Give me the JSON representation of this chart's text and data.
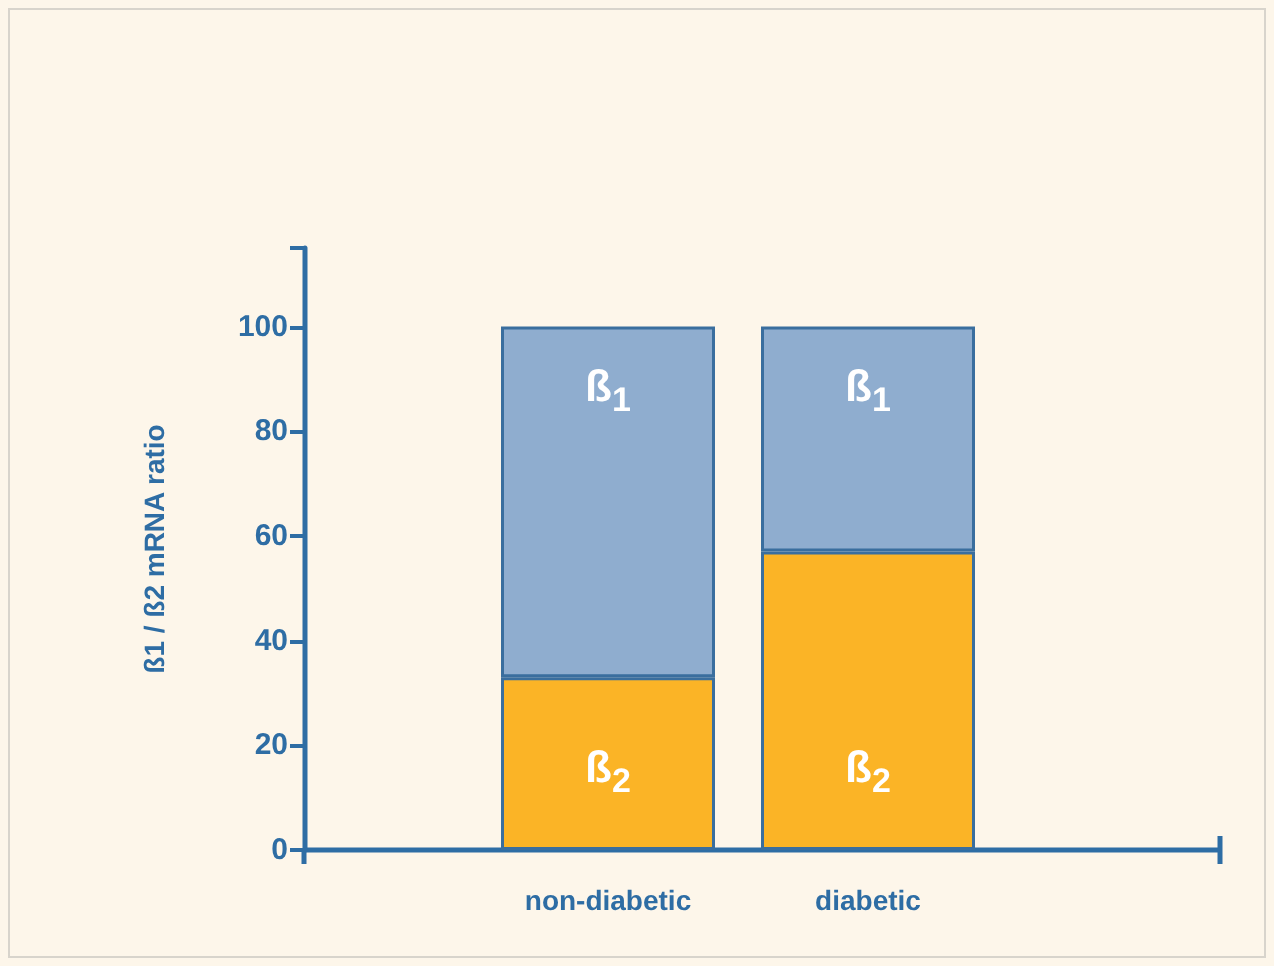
{
  "chart_data": {
    "type": "bar",
    "stacked": true,
    "ylabel": "ß1 / ß2 mRNA ratio",
    "categories": [
      "non-diabetic",
      "diabetic"
    ],
    "series": [
      {
        "name": "ß$_{2}$",
        "color": "#fbb426",
        "values": [
          33,
          57
        ]
      },
      {
        "name": "ß$_{1}$",
        "color": "#8fadcf",
        "values": [
          67,
          43
        ]
      }
    ],
    "ylim": [
      0,
      115
    ],
    "yticks": [
      0,
      20,
      40,
      60,
      80,
      100
    ],
    "grid": false,
    "legend": false
  }
}
